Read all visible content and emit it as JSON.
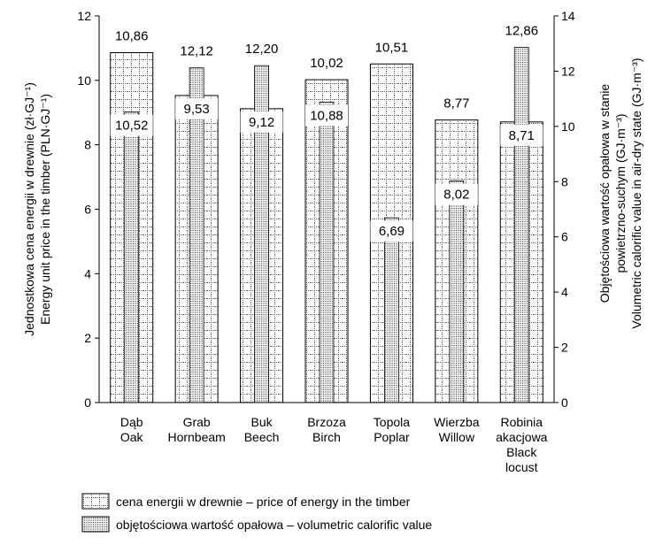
{
  "chart_data": {
    "type": "bar",
    "categories": [
      [
        "Dąb",
        "Oak"
      ],
      [
        "Grab",
        "Hornbeam"
      ],
      [
        "Buk",
        "Beech"
      ],
      [
        "Brzoza",
        "Birch"
      ],
      [
        "Topola",
        "Poplar"
      ],
      [
        "Wierzba",
        "Willow"
      ],
      [
        "Robinia",
        "akacjowa",
        "Black",
        "locust"
      ]
    ],
    "left_axis": {
      "label_lines": [
        "Jednostkowa cena energii w drewnie (zł·GJ⁻¹)",
        "Energy unit price in the timber (PLN·GJ⁻¹)"
      ],
      "ylim": [
        0,
        12
      ],
      "ticks": [
        "0",
        "2",
        "4",
        "6",
        "8",
        "10",
        "12"
      ]
    },
    "right_axis": {
      "label_lines": [
        "Objętościowa wartość opałowa w stanie",
        "powietrzno-suchym (GJ·m⁻³)",
        "Volumetric calorific value in air-dry state (GJ·m⁻³)"
      ],
      "ylim": [
        0,
        14
      ],
      "ticks": [
        "0",
        "2",
        "4",
        "6",
        "8",
        "10",
        "12",
        "14"
      ]
    },
    "series": [
      {
        "axis": "left",
        "pattern": "grid",
        "values": [
          10.86,
          9.53,
          9.12,
          10.02,
          10.51,
          8.77,
          8.71
        ],
        "labels": [
          "10,86",
          "9,53",
          "9,12",
          "10,02",
          "10,51",
          "8,77",
          "8,71"
        ]
      },
      {
        "axis": "right",
        "pattern": "dots",
        "values": [
          10.52,
          12.12,
          12.2,
          10.88,
          6.69,
          8.02,
          12.86
        ],
        "labels": [
          "10,52",
          "12,12",
          "12,20",
          "10,88",
          "6,69",
          "8,02",
          "12,86"
        ]
      }
    ],
    "legend": {
      "placement": "bottom",
      "items": [
        {
          "pattern": "grid",
          "label": "cena energii w drewnie – price of energy in the timber"
        },
        {
          "pattern": "dots",
          "label": "objętościowa wartość opałowa – volumetric calorific value"
        }
      ]
    }
  }
}
